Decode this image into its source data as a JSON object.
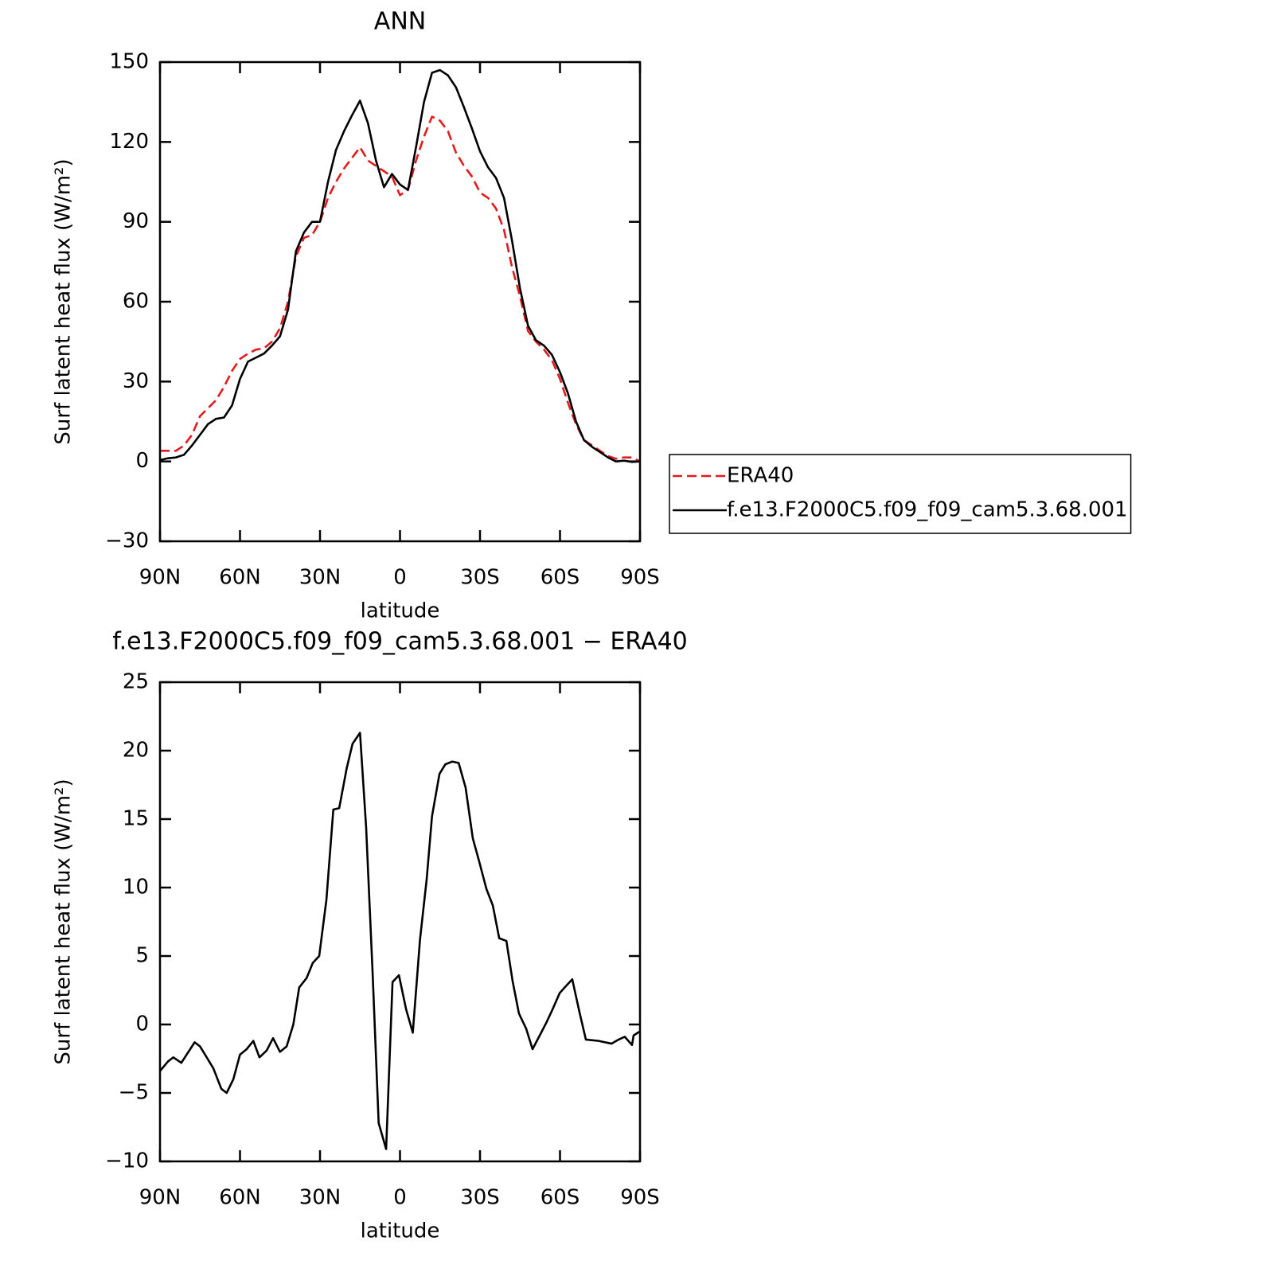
{
  "chart_data": [
    {
      "type": "line",
      "title": "ANN",
      "x_label": "latitude",
      "y_label": "Surf latent heat flux (W/m²)",
      "x": [
        90,
        87,
        84,
        81,
        78,
        75,
        72,
        69,
        66,
        63,
        60,
        57,
        54,
        51,
        48,
        45,
        42,
        39,
        36,
        33,
        30,
        27,
        24,
        21,
        18,
        15,
        12,
        9,
        6,
        3,
        0,
        -3,
        -6,
        -9,
        -12,
        -15,
        -18,
        -21,
        -24,
        -27,
        -30,
        -33,
        -36,
        -39,
        -42,
        -45,
        -48,
        -51,
        -54,
        -57,
        -60,
        -63,
        -66,
        -69,
        -72,
        -75,
        -78,
        -81,
        -84,
        -87,
        -90
      ],
      "series": [
        {
          "name": "ERA40",
          "color": "#e41a1c",
          "line_style": "dashed",
          "values": [
            4,
            4,
            4,
            6,
            10,
            17,
            20,
            23,
            28,
            34,
            38.5,
            40.5,
            42,
            42.5,
            45,
            50,
            60,
            77,
            84,
            85,
            90,
            99,
            105,
            110,
            114,
            118,
            113,
            111,
            109,
            107,
            100,
            102,
            113,
            122,
            129.5,
            128,
            124,
            116,
            111,
            107,
            101,
            99,
            95,
            87,
            73,
            62,
            49,
            45,
            42,
            38,
            31,
            22,
            14,
            8,
            6,
            4,
            2,
            1,
            1.5,
            1.5,
            0
          ]
        },
        {
          "name": "f.e13.F2000C5.f09_f09_cam5.3.68.001",
          "color": "#000000",
          "line_style": "solid",
          "values": [
            0.5,
            1.2,
            1.5,
            2.5,
            6,
            10,
            14,
            16,
            16.5,
            21,
            31,
            37.5,
            39,
            40.5,
            43.5,
            47,
            57,
            79,
            86,
            90,
            90,
            105,
            117,
            124,
            130,
            135.5,
            127,
            113,
            103,
            108,
            104,
            102,
            118,
            135,
            146,
            147,
            145,
            140.5,
            133,
            125,
            116.5,
            110.5,
            106.5,
            99,
            83,
            65,
            51,
            45.5,
            43.5,
            40,
            33.5,
            25.5,
            15,
            8,
            5.5,
            3.5,
            1.5,
            0,
            0.3,
            -0.2,
            0
          ]
        }
      ],
      "xlim": [
        90,
        -90
      ],
      "xticks": [
        {
          "value": 90,
          "label": "90N"
        },
        {
          "value": 60,
          "label": "60N"
        },
        {
          "value": 30,
          "label": "30N"
        },
        0,
        {
          "value": -30,
          "label": "30S"
        },
        {
          "value": -60,
          "label": "60S"
        },
        {
          "value": -90,
          "label": "90S"
        }
      ],
      "ylim": [
        -30,
        150
      ],
      "yticks": [
        {
          "value": -30,
          "label": "−30"
        },
        0,
        30,
        60,
        90,
        120,
        150
      ],
      "legend": "right"
    },
    {
      "type": "line",
      "title": "f.e13.F2000C5.f09_f09_cam5.3.68.001 − ERA40",
      "x_label": "latitude",
      "y_label": "Surf latent heat flux (W/m²)",
      "x": [
        90,
        87,
        85,
        82,
        80,
        77,
        75,
        70,
        67,
        65,
        62.5,
        60,
        57.5,
        55,
        52.7,
        50,
        47.6,
        45,
        42.5,
        40,
        37.8,
        35,
        32.7,
        30.3,
        27.6,
        25,
        22.8,
        20,
        17.8,
        15,
        12.7,
        10.3,
        8,
        5.2,
        2.8,
        0.4,
        -2.3,
        -4.8,
        -7.5,
        -10,
        -12,
        -14.8,
        -17,
        -19.6,
        -22,
        -24.6,
        -27.3,
        -29.7,
        -32.4,
        -34.8,
        -37.2,
        -39.9,
        -42.2,
        -44.6,
        -47.3,
        -49.7,
        -52.4,
        -54.8,
        -57.2,
        -59.9,
        -62.2,
        -64.6,
        -67.3,
        -69.7,
        -74.5,
        -76.9,
        -79.3,
        -82,
        -84.3,
        -87,
        -87.6,
        -90
      ],
      "series": [
        {
          "color": "#000000",
          "line_style": "solid",
          "values": [
            -3.4,
            -2.7,
            -2.4,
            -2.8,
            -2.2,
            -1.3,
            -1.6,
            -3.2,
            -4.7,
            -5,
            -4,
            -2.2,
            -1.8,
            -1.2,
            -2.4,
            -1.9,
            -1,
            -2,
            -1.6,
            0,
            2.7,
            3.4,
            4.5,
            5,
            9.1,
            15.7,
            15.8,
            18.7,
            20.5,
            21.3,
            14.4,
            3.9,
            -7.2,
            -9.1,
            3.1,
            3.6,
            1.1,
            -0.6,
            6.2,
            10.6,
            15.2,
            18.3,
            19,
            19.2,
            19.1,
            17.3,
            13.6,
            11.9,
            9.9,
            8.7,
            6.3,
            6.1,
            3.2,
            0.8,
            -0.3,
            -1.8,
            -0.8,
            0.1,
            1.1,
            2.3,
            2.8,
            3.3,
            0.9,
            -1.1,
            -1.2,
            -1.3,
            -1.4,
            -1.1,
            -0.9,
            -1.5,
            -0.8,
            -0.5
          ]
        }
      ],
      "xlim": [
        90,
        -90
      ],
      "xticks": [
        {
          "value": 90,
          "label": "90N"
        },
        {
          "value": 60,
          "label": "60N"
        },
        {
          "value": 30,
          "label": "30N"
        },
        0,
        {
          "value": -30,
          "label": "30S"
        },
        {
          "value": -60,
          "label": "60S"
        },
        {
          "value": -90,
          "label": "90S"
        }
      ],
      "ylim": [
        -10,
        25
      ],
      "yticks": [
        {
          "value": -10,
          "label": "−10"
        },
        {
          "value": -5,
          "label": "−5"
        },
        0,
        5,
        10,
        15,
        20,
        25
      ]
    }
  ]
}
